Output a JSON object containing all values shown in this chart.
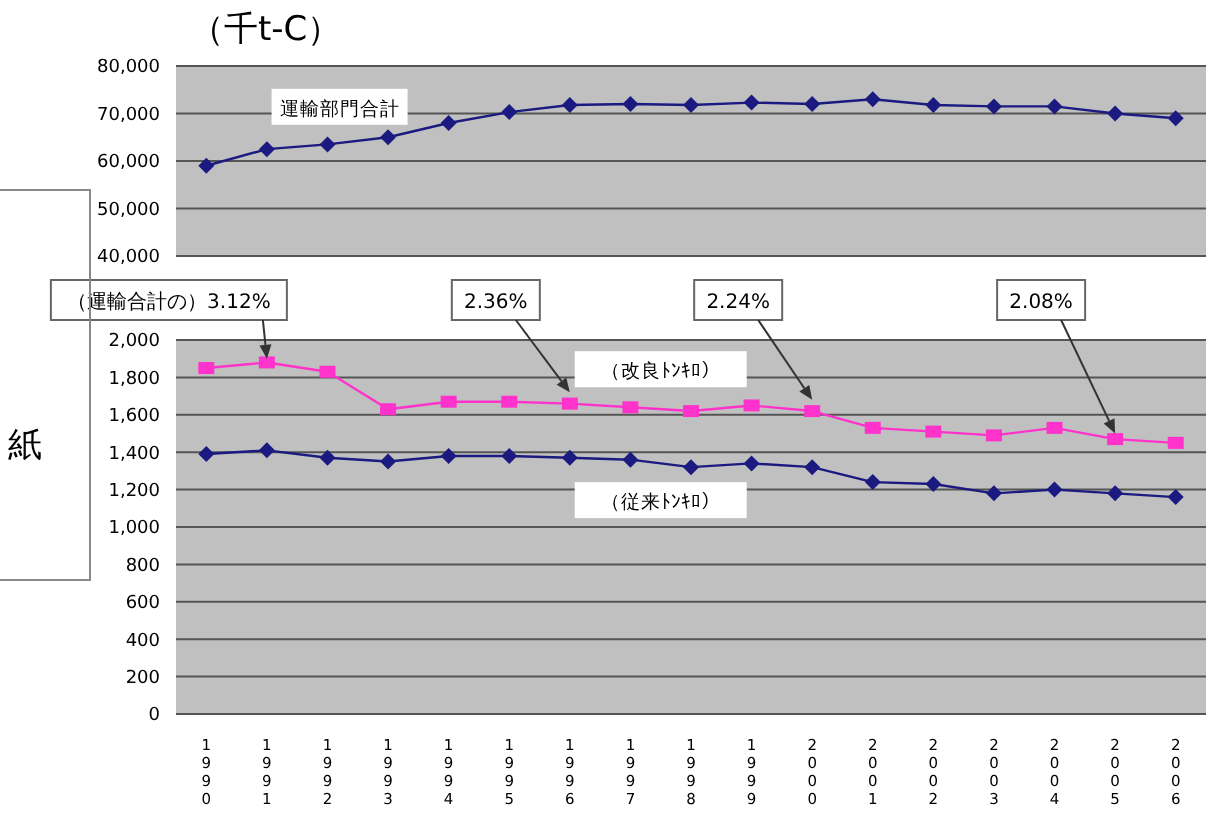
{
  "chart_data": [
    {
      "type": "line",
      "title": "（千t-C）",
      "categories": [
        "1990",
        "1991",
        "1992",
        "1993",
        "1994",
        "1995",
        "1996",
        "1997",
        "1998",
        "1999",
        "2000",
        "2001",
        "2002",
        "2003",
        "2004",
        "2005",
        "2006"
      ],
      "series": [
        {
          "name": "運輸部門合計",
          "color": "#1a1a80",
          "marker": "diamond",
          "values": [
            59000,
            62500,
            63500,
            65000,
            68000,
            70300,
            71800,
            72000,
            71800,
            72300,
            72000,
            73000,
            71800,
            71500,
            71500,
            70000,
            69000
          ]
        }
      ],
      "ylim": [
        40000,
        80000
      ],
      "yticks": [
        {
          "value": 40000,
          "label": "40,000"
        },
        {
          "value": 50000,
          "label": "50,000"
        },
        {
          "value": 60000,
          "label": "60,000"
        },
        {
          "value": 70000,
          "label": "70,000"
        },
        {
          "value": 80000,
          "label": "80,000"
        }
      ],
      "grid": "y",
      "tick_labels": "y"
    },
    {
      "type": "line",
      "categories": [
        "1990",
        "1991",
        "1992",
        "1993",
        "1994",
        "1995",
        "1996",
        "1997",
        "1998",
        "1999",
        "2000",
        "2001",
        "2002",
        "2003",
        "2004",
        "2005",
        "2006"
      ],
      "series": [
        {
          "name": "（改良ﾄﾝｷﾛ）",
          "color": "#ff33cc",
          "marker": "square",
          "values": [
            1850,
            1880,
            1830,
            1630,
            1670,
            1670,
            1660,
            1640,
            1620,
            1650,
            1620,
            1530,
            1510,
            1490,
            1530,
            1470,
            1450
          ]
        },
        {
          "name": "（従来ﾄﾝｷﾛ）",
          "color": "#1a1a80",
          "marker": "diamond",
          "values": [
            1390,
            1410,
            1370,
            1350,
            1380,
            1380,
            1370,
            1360,
            1320,
            1340,
            1320,
            1240,
            1230,
            1180,
            1200,
            1180,
            1160
          ]
        }
      ],
      "ylim": [
        0,
        2000
      ],
      "yticks": [
        0,
        200,
        400,
        600,
        800,
        {
          "value": 1000,
          "label": "1,000"
        },
        {
          "value": 1200,
          "label": "1,200"
        },
        {
          "value": 1400,
          "label": "1,400"
        },
        {
          "value": 1600,
          "label": "1,600"
        },
        {
          "value": 1800,
          "label": "1,800"
        },
        {
          "value": 2000,
          "label": "2,000"
        }
      ],
      "grid": "y",
      "annotations": [
        {
          "text": "（運輸合計の）3.12%",
          "x": "1991",
          "y": 1900
        },
        {
          "text": "2.36%",
          "x": "1996",
          "y": 1720
        },
        {
          "text": "2.24%",
          "x": "2000",
          "y": 1680
        },
        {
          "text": "2.08%",
          "x": "2005",
          "y": 1500
        },
        "紙"
      ]
    }
  ]
}
